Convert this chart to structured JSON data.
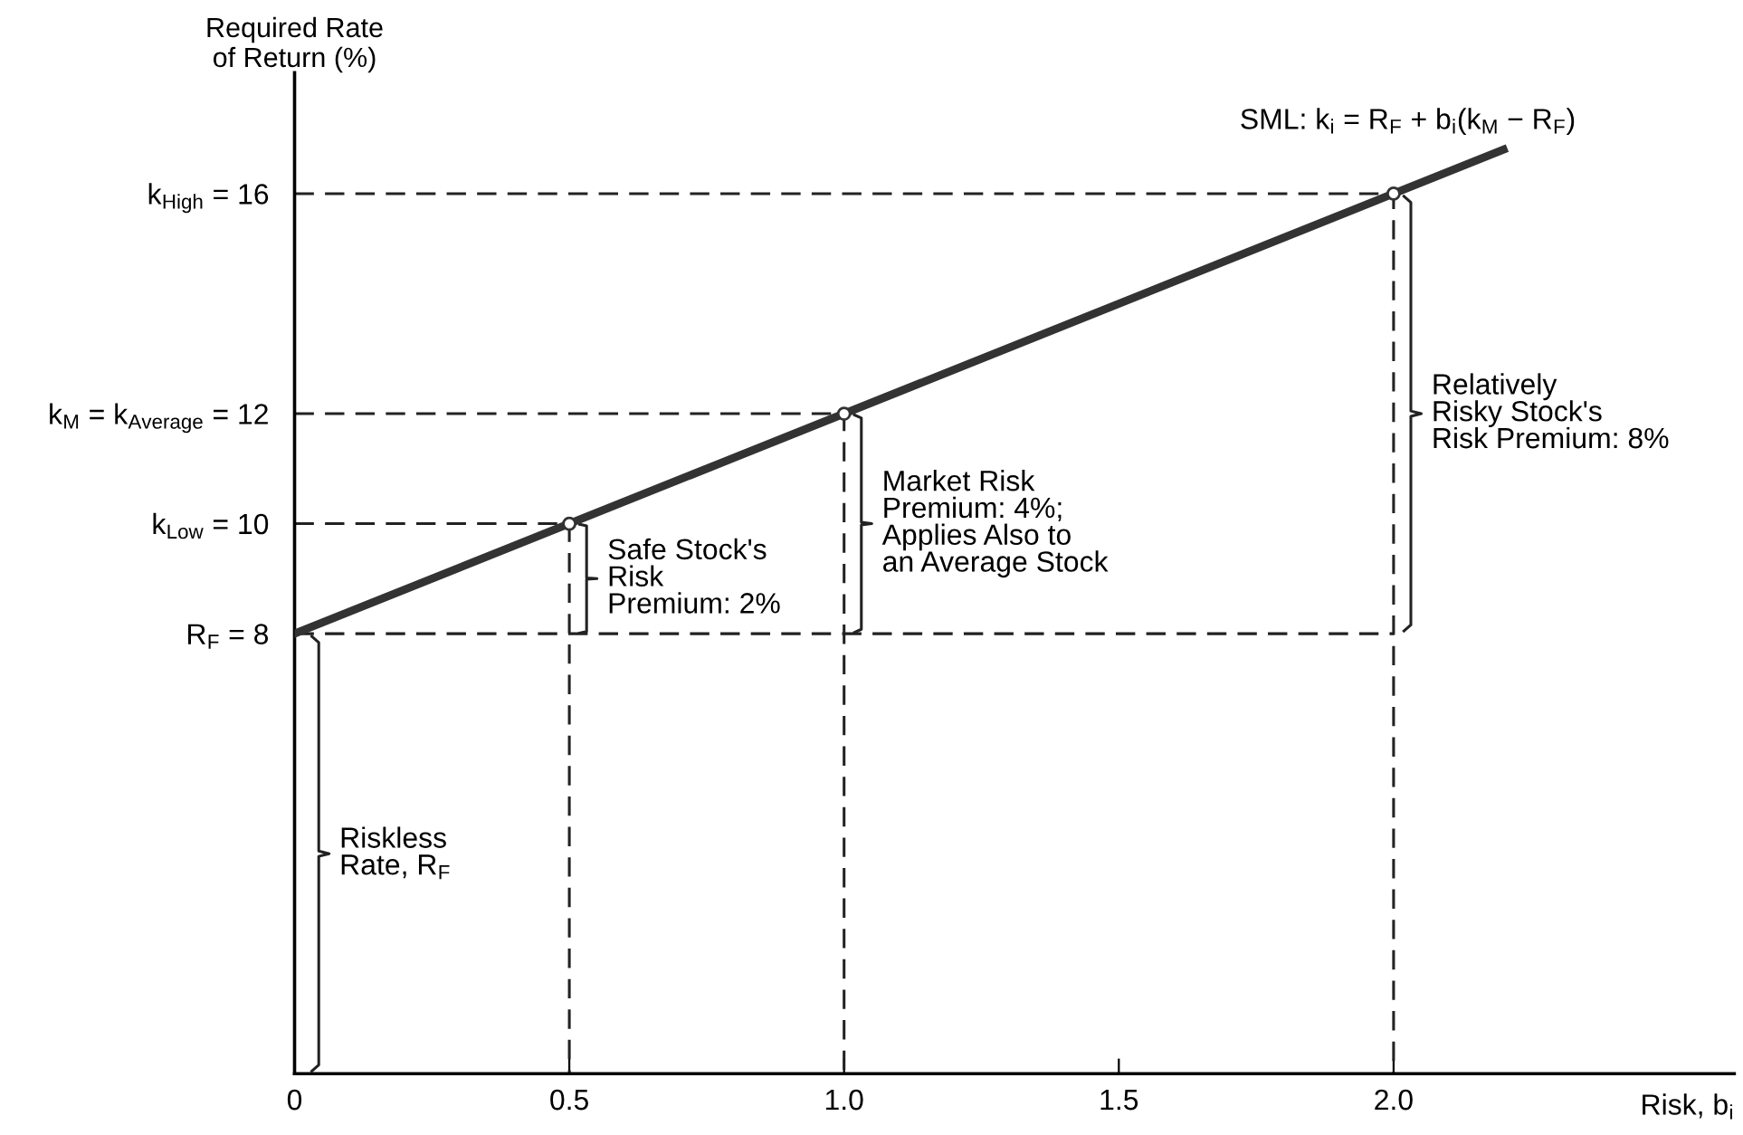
{
  "chart_data": {
    "type": "line",
    "xlabel": "Risk, b$_{i}$",
    "ylabel": "Required Rate\nof Return (%)",
    "xlim": [
      0,
      2.62
    ],
    "ylim": [
      0,
      18.2
    ],
    "xticks": [
      0,
      0.5,
      {
        "value": 1.0,
        "label": "1.0"
      },
      1.5,
      {
        "value": 2.0,
        "label": "2.0"
      }
    ],
    "yticks": [
      {
        "value": 8,
        "label": "R$_{F}$ = 8"
      },
      {
        "value": 10,
        "label": "k$_{Low}$ = 10"
      },
      {
        "value": 12,
        "label": "k$_{M}$ = k$_{Average}$ = 12"
      },
      {
        "value": 16,
        "label": "k$_{High}$ = 16"
      }
    ],
    "grid": false,
    "legend": false,
    "series": [
      {
        "name": "SML: k$_{i}$ = R$_{F}$ + b$_{i}$(k$_{M}$ − R$_{F}$)",
        "color": "#333333",
        "x": [
          0,
          2.2
        ],
        "values": [
          8,
          16.8
        ],
        "line_style": "solid"
      },
      {
        "type": "scatter",
        "color": "#333333",
        "x": [
          0.5,
          1.0,
          2.0
        ],
        "values": [
          10,
          12,
          16
        ],
        "marker": "circle"
      },
      {
        "color": "#222222",
        "x": [
          0,
          2.0
        ],
        "values": [
          8,
          8
        ],
        "line_style": "dashed"
      },
      {
        "color": "#222222",
        "x": [
          0,
          0.5,
          0.5
        ],
        "values": [
          10,
          10,
          0
        ],
        "line_style": "dashed"
      },
      {
        "color": "#222222",
        "x": [
          0,
          1.0,
          1.0
        ],
        "values": [
          12,
          12,
          0
        ],
        "line_style": "dashed"
      },
      {
        "color": "#222222",
        "x": [
          0,
          2.0,
          2.0
        ],
        "values": [
          16,
          16,
          0
        ],
        "line_style": "dashed"
      }
    ],
    "annotations": [
      "Riskless\nRate, R$_{F}$",
      {
        "text": "Safe Stock's\nRisk\nPremium: 2%",
        "x": 0.5,
        "y": 9
      },
      {
        "text": "Market Risk\nPremium: 4%;\nApplies Also to\nan Average Stock",
        "x": 1.0,
        "y": 10
      },
      {
        "text": "Relatively\nRisky Stock's\nRisk Premium: 8%",
        "x": 2.0,
        "y": 12
      }
    ]
  }
}
